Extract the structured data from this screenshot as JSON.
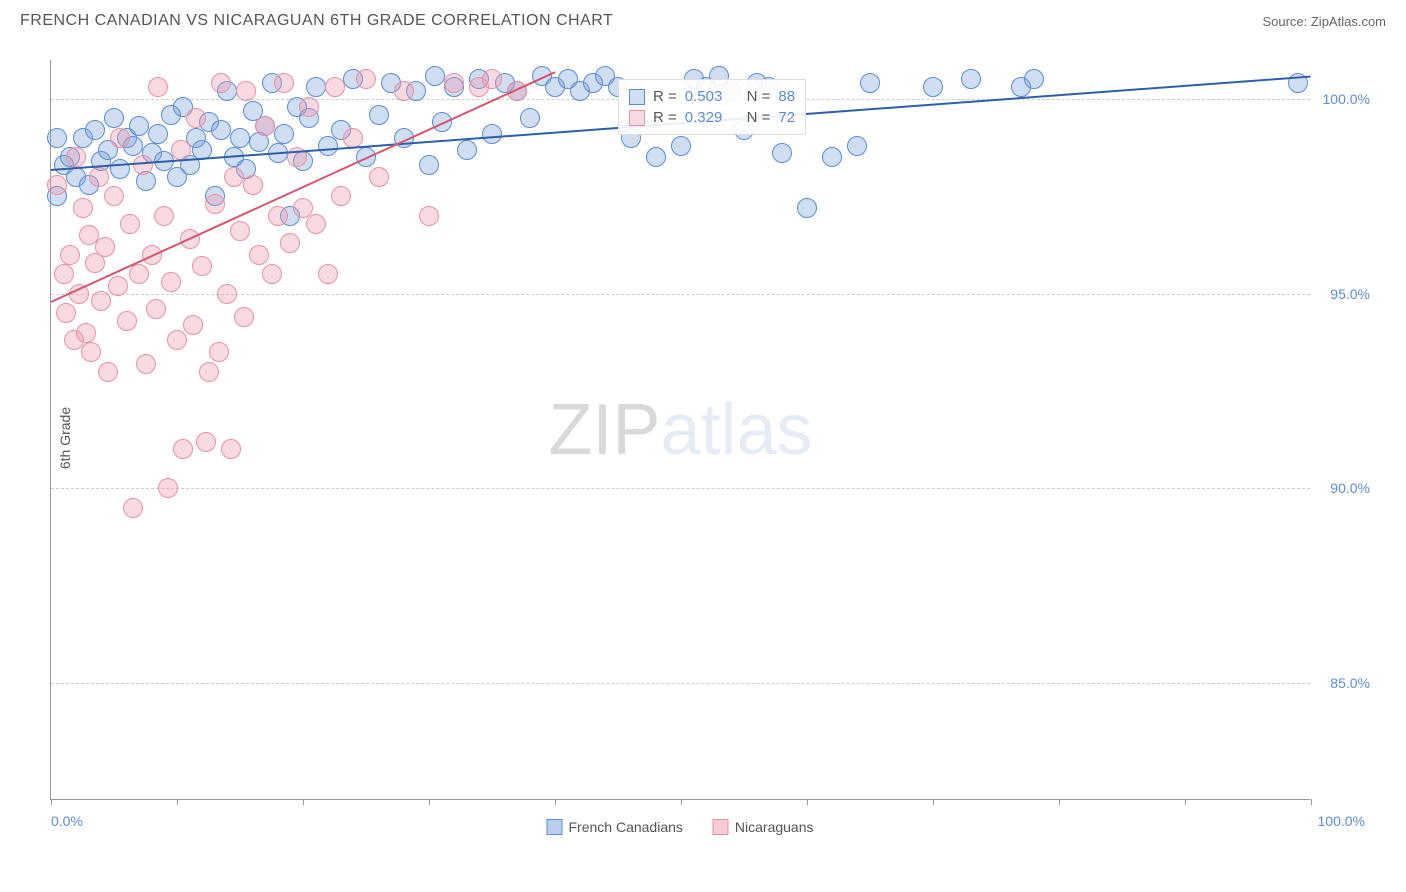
{
  "title": "FRENCH CANADIAN VS NICARAGUAN 6TH GRADE CORRELATION CHART",
  "source": "Source: ZipAtlas.com",
  "y_axis_label": "6th Grade",
  "chart": {
    "type": "scatter",
    "xlim": [
      0,
      100
    ],
    "ylim": [
      82,
      101
    ],
    "x_labels": {
      "min": "0.0%",
      "max": "100.0%"
    },
    "y_ticks": [
      {
        "value": 100,
        "label": "100.0%"
      },
      {
        "value": 95,
        "label": "95.0%"
      },
      {
        "value": 90,
        "label": "90.0%"
      },
      {
        "value": 85,
        "label": "85.0%"
      }
    ],
    "x_tick_positions": [
      0,
      10,
      20,
      30,
      40,
      50,
      60,
      70,
      80,
      90,
      100
    ],
    "background_color": "#ffffff",
    "grid_color": "#cccccc",
    "series": [
      {
        "name": "French Canadians",
        "fill": "rgba(120,160,220,0.35)",
        "stroke": "#5b8dd6",
        "trend_color": "#2e5fa8",
        "marker_radius": 10,
        "R": "0.503",
        "N": "88",
        "trend": {
          "x1": 0,
          "y1": 98.2,
          "x2": 100,
          "y2": 100.6
        },
        "points": [
          [
            0.5,
            99.0
          ],
          [
            1,
            98.3
          ],
          [
            1.5,
            98.5
          ],
          [
            2,
            98.0
          ],
          [
            2.5,
            99.0
          ],
          [
            3,
            97.8
          ],
          [
            3.5,
            99.2
          ],
          [
            4,
            98.4
          ],
          [
            4.5,
            98.7
          ],
          [
            5,
            99.5
          ],
          [
            5.5,
            98.2
          ],
          [
            6,
            99.0
          ],
          [
            6.5,
            98.8
          ],
          [
            7,
            99.3
          ],
          [
            7.5,
            97.9
          ],
          [
            8,
            98.6
          ],
          [
            8.5,
            99.1
          ],
          [
            9,
            98.4
          ],
          [
            9.5,
            99.6
          ],
          [
            10,
            98.0
          ],
          [
            10.5,
            99.8
          ],
          [
            11,
            98.3
          ],
          [
            11.5,
            99.0
          ],
          [
            12,
            98.7
          ],
          [
            12.5,
            99.4
          ],
          [
            13,
            97.5
          ],
          [
            13.5,
            99.2
          ],
          [
            14,
            100.2
          ],
          [
            14.5,
            98.5
          ],
          [
            15,
            99.0
          ],
          [
            15.5,
            98.2
          ],
          [
            16,
            99.7
          ],
          [
            16.5,
            98.9
          ],
          [
            17,
            99.3
          ],
          [
            17.5,
            100.4
          ],
          [
            18,
            98.6
          ],
          [
            18.5,
            99.1
          ],
          [
            19,
            97.0
          ],
          [
            19.5,
            99.8
          ],
          [
            20,
            98.4
          ],
          [
            20.5,
            99.5
          ],
          [
            21,
            100.3
          ],
          [
            22,
            98.8
          ],
          [
            23,
            99.2
          ],
          [
            24,
            100.5
          ],
          [
            25,
            98.5
          ],
          [
            26,
            99.6
          ],
          [
            27,
            100.4
          ],
          [
            28,
            99.0
          ],
          [
            29,
            100.2
          ],
          [
            30,
            98.3
          ],
          [
            30.5,
            100.6
          ],
          [
            31,
            99.4
          ],
          [
            32,
            100.3
          ],
          [
            33,
            98.7
          ],
          [
            34,
            100.5
          ],
          [
            35,
            99.1
          ],
          [
            36,
            100.4
          ],
          [
            37,
            100.2
          ],
          [
            38,
            99.5
          ],
          [
            39,
            100.6
          ],
          [
            40,
            100.3
          ],
          [
            41,
            100.5
          ],
          [
            42,
            100.2
          ],
          [
            43,
            100.4
          ],
          [
            44,
            100.6
          ],
          [
            45,
            100.3
          ],
          [
            46,
            99.0
          ],
          [
            48,
            98.5
          ],
          [
            50,
            98.8
          ],
          [
            51,
            100.5
          ],
          [
            52,
            100.3
          ],
          [
            53,
            100.6
          ],
          [
            54,
            100.2
          ],
          [
            55,
            99.2
          ],
          [
            56,
            100.4
          ],
          [
            57,
            100.3
          ],
          [
            58,
            98.6
          ],
          [
            60,
            97.2
          ],
          [
            62,
            98.5
          ],
          [
            64,
            98.8
          ],
          [
            65,
            100.4
          ],
          [
            70,
            100.3
          ],
          [
            73,
            100.5
          ],
          [
            77,
            100.3
          ],
          [
            78,
            100.5
          ],
          [
            99,
            100.4
          ],
          [
            0.5,
            97.5
          ]
        ]
      },
      {
        "name": "Nicaraguans",
        "fill": "rgba(240,150,170,0.35)",
        "stroke": "#e891a5",
        "trend_color": "#d6546e",
        "marker_radius": 10,
        "R": "0.329",
        "N": "72",
        "trend": {
          "x1": 0,
          "y1": 94.8,
          "x2": 40,
          "y2": 100.7
        },
        "points": [
          [
            0.5,
            97.8
          ],
          [
            1,
            95.5
          ],
          [
            1.2,
            94.5
          ],
          [
            1.5,
            96.0
          ],
          [
            1.8,
            93.8
          ],
          [
            2,
            98.5
          ],
          [
            2.2,
            95.0
          ],
          [
            2.5,
            97.2
          ],
          [
            2.8,
            94.0
          ],
          [
            3,
            96.5
          ],
          [
            3.2,
            93.5
          ],
          [
            3.5,
            95.8
          ],
          [
            3.8,
            98.0
          ],
          [
            4,
            94.8
          ],
          [
            4.3,
            96.2
          ],
          [
            4.5,
            93.0
          ],
          [
            5,
            97.5
          ],
          [
            5.3,
            95.2
          ],
          [
            5.5,
            99.0
          ],
          [
            6,
            94.3
          ],
          [
            6.3,
            96.8
          ],
          [
            6.5,
            89.5
          ],
          [
            7,
            95.5
          ],
          [
            7.3,
            98.3
          ],
          [
            7.5,
            93.2
          ],
          [
            8,
            96.0
          ],
          [
            8.3,
            94.6
          ],
          [
            8.5,
            100.3
          ],
          [
            9,
            97.0
          ],
          [
            9.3,
            90.0
          ],
          [
            9.5,
            95.3
          ],
          [
            10,
            93.8
          ],
          [
            10.3,
            98.7
          ],
          [
            10.5,
            91.0
          ],
          [
            11,
            96.4
          ],
          [
            11.3,
            94.2
          ],
          [
            11.5,
            99.5
          ],
          [
            12,
            95.7
          ],
          [
            12.3,
            91.2
          ],
          [
            12.5,
            93.0
          ],
          [
            13,
            97.3
          ],
          [
            13.3,
            93.5
          ],
          [
            13.5,
            100.4
          ],
          [
            14,
            95.0
          ],
          [
            14.3,
            91.0
          ],
          [
            14.5,
            98.0
          ],
          [
            15,
            96.6
          ],
          [
            15.3,
            94.4
          ],
          [
            15.5,
            100.2
          ],
          [
            16,
            97.8
          ],
          [
            16.5,
            96.0
          ],
          [
            17,
            99.3
          ],
          [
            17.5,
            95.5
          ],
          [
            18,
            97.0
          ],
          [
            18.5,
            100.4
          ],
          [
            19,
            96.3
          ],
          [
            19.5,
            98.5
          ],
          [
            20,
            97.2
          ],
          [
            20.5,
            99.8
          ],
          [
            21,
            96.8
          ],
          [
            22,
            95.5
          ],
          [
            22.5,
            100.3
          ],
          [
            23,
            97.5
          ],
          [
            24,
            99.0
          ],
          [
            25,
            100.5
          ],
          [
            26,
            98.0
          ],
          [
            28,
            100.2
          ],
          [
            30,
            97.0
          ],
          [
            32,
            100.4
          ],
          [
            34,
            100.3
          ],
          [
            35,
            100.5
          ],
          [
            37,
            100.2
          ]
        ]
      }
    ],
    "watermark": {
      "text1": "ZIP",
      "text2": "atlas"
    }
  },
  "legend": {
    "items": [
      {
        "label": "French Canadians",
        "fill": "rgba(120,160,220,0.5)",
        "stroke": "#5b8dd6"
      },
      {
        "label": "Nicaraguans",
        "fill": "rgba(240,150,170,0.5)",
        "stroke": "#e891a5"
      }
    ]
  }
}
